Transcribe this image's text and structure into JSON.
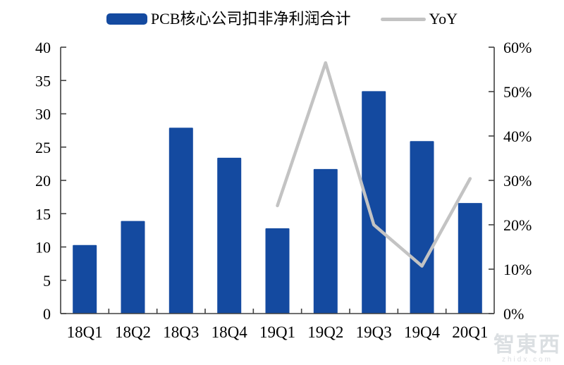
{
  "legend": {
    "bar_label": "PCB核心公司扣非净利润合计",
    "line_label": "YoY"
  },
  "watermark": {
    "logo": "智東西",
    "url": "zhidx.com"
  },
  "colors": {
    "bar": "#144AA0",
    "line": "#C3C3C3",
    "axis": "#404040",
    "text": "#000000",
    "watermark": "#BFC5CC"
  },
  "chart_data": {
    "type": "combo_bar_line",
    "title": "",
    "xlabel": "",
    "ylabel_left": "",
    "ylabel_right": "",
    "grid": false,
    "legend_position": "top",
    "categories": [
      "18Q1",
      "18Q2",
      "18Q3",
      "18Q4",
      "19Q1",
      "19Q2",
      "19Q3",
      "19Q4",
      "20Q1"
    ],
    "series": [
      {
        "name": "PCB核心公司扣非净利润合计",
        "type": "bar",
        "axis": "left",
        "values": [
          10.3,
          13.9,
          27.9,
          23.4,
          12.8,
          21.7,
          33.4,
          25.9,
          16.6
        ]
      },
      {
        "name": "YoY",
        "type": "line",
        "axis": "right",
        "unit": "percent",
        "values": [
          null,
          null,
          null,
          null,
          24.3,
          56.5,
          20.0,
          10.7,
          30.4
        ]
      }
    ],
    "left_axis": {
      "min": 0,
      "max": 40,
      "step": 5,
      "tick_labels": [
        "0",
        "5",
        "10",
        "15",
        "20",
        "25",
        "30",
        "35",
        "40"
      ]
    },
    "right_axis": {
      "min": 0,
      "max": 60,
      "step": 10,
      "tick_labels": [
        "0%",
        "10%",
        "20%",
        "30%",
        "40%",
        "50%",
        "60%"
      ]
    }
  }
}
